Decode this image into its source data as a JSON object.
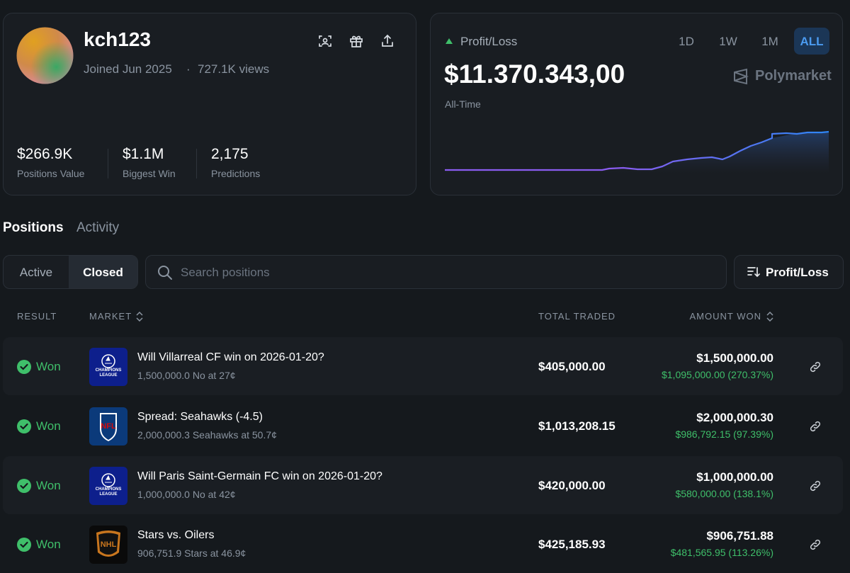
{
  "profile": {
    "username": "kch123",
    "joined": "Joined Jun 2025",
    "separator": "·",
    "views": "727.1K views",
    "stats": [
      {
        "value": "$266.9K",
        "label": "Positions Value"
      },
      {
        "value": "$1.1M",
        "label": "Biggest Win"
      },
      {
        "value": "2,175",
        "label": "Predictions"
      }
    ]
  },
  "pnl": {
    "label": "Profit/Loss",
    "ranges": [
      "1D",
      "1W",
      "1M",
      "ALL"
    ],
    "active_range": "ALL",
    "value": "$11.370.343,00",
    "period": "All-Time",
    "brand": "Polymarket"
  },
  "tabs": [
    "Positions",
    "Activity"
  ],
  "filters": [
    "Active",
    "Closed"
  ],
  "active_filter": "Closed",
  "search_placeholder": "Search positions",
  "sort": "Profit/Loss",
  "table": {
    "headers": [
      "RESULT",
      "MARKET",
      "TOTAL TRADED",
      "AMOUNT WON"
    ],
    "rows": [
      {
        "result": "Won",
        "logo": "CHAMPIONS LEAGUE",
        "market": "Will Villarreal CF win on 2026-01-20?",
        "detail": "1,500,000.0 No at 27¢",
        "total_traded": "$405,000.00",
        "amount_won": "$1,500,000.00",
        "profit": "$1,095,000.00 (270.37%)"
      },
      {
        "result": "Won",
        "logo": "NFL",
        "market": "Spread: Seahawks (-4.5)",
        "detail": "2,000,000.3 Seahawks at 50.7¢",
        "total_traded": "$1,013,208.15",
        "amount_won": "$2,000,000.30",
        "profit": "$986,792.15 (97.39%)"
      },
      {
        "result": "Won",
        "logo": "CHAMPIONS LEAGUE",
        "market": "Will Paris Saint-Germain FC win on 2026-01-20?",
        "detail": "1,000,000.0 No at 42¢",
        "total_traded": "$420,000.00",
        "amount_won": "$1,000,000.00",
        "profit": "$580,000.00 (138.1%)"
      },
      {
        "result": "Won",
        "logo": "NHL",
        "market": "Stars vs. Oilers",
        "detail": "906,751.9 Stars at 46.9¢",
        "total_traded": "$425,185.93",
        "amount_won": "$906,751.88",
        "profit": "$481,565.95 (113.26%)"
      }
    ]
  }
}
